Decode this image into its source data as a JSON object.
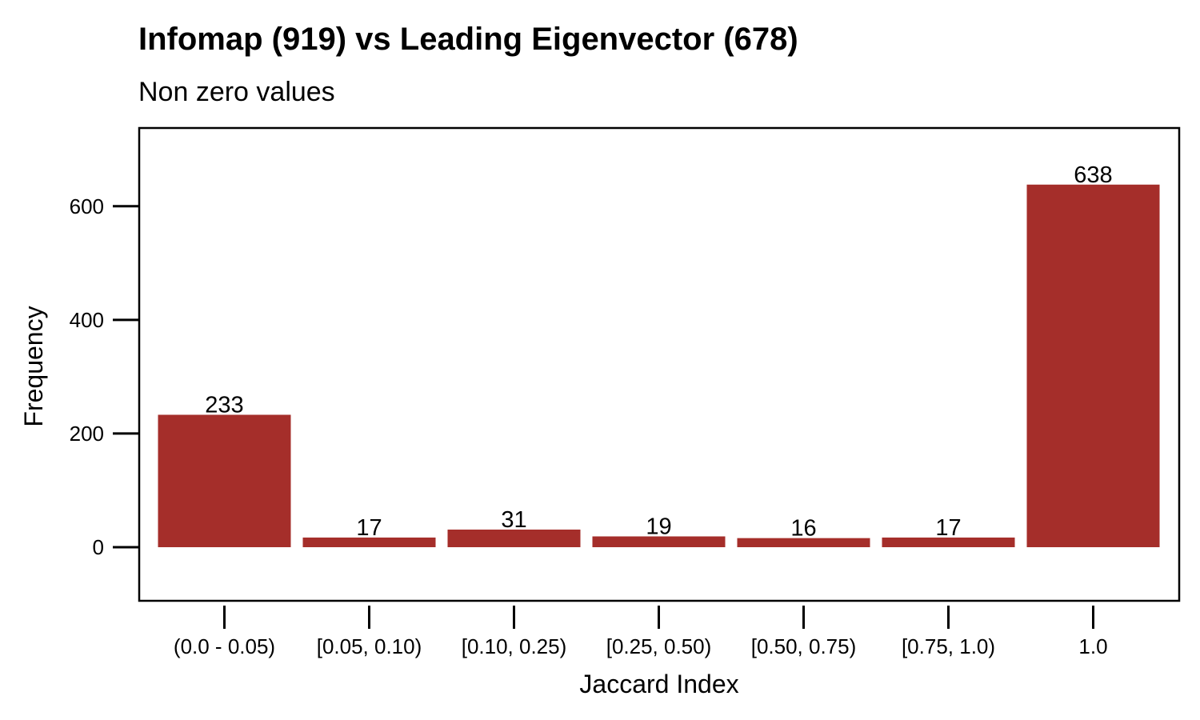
{
  "chart_data": {
    "type": "bar",
    "title": "Infomap (919) vs Leading Eigenvector (678)",
    "subtitle": "Non zero values",
    "xlabel": "Jaccard Index",
    "ylabel": "Frequency",
    "categories": [
      "(0.0 - 0.05)",
      "[0.05, 0.10)",
      "[0.10, 0.25)",
      "[0.25, 0.50)",
      "[0.50, 0.75)",
      "[0.75, 1.0)",
      "1.0"
    ],
    "values": [
      233,
      17,
      31,
      19,
      16,
      17,
      638
    ],
    "value_labels": [
      "233",
      "17",
      "31",
      "19",
      "16",
      "17",
      "638"
    ],
    "y_ticks": [
      0,
      200,
      400,
      600
    ],
    "y_tick_labels": [
      "0",
      "200",
      "400",
      "600"
    ],
    "ylim": [
      -95,
      735
    ],
    "bar_color": "#a52e2a",
    "grid": false,
    "legend": "none"
  }
}
